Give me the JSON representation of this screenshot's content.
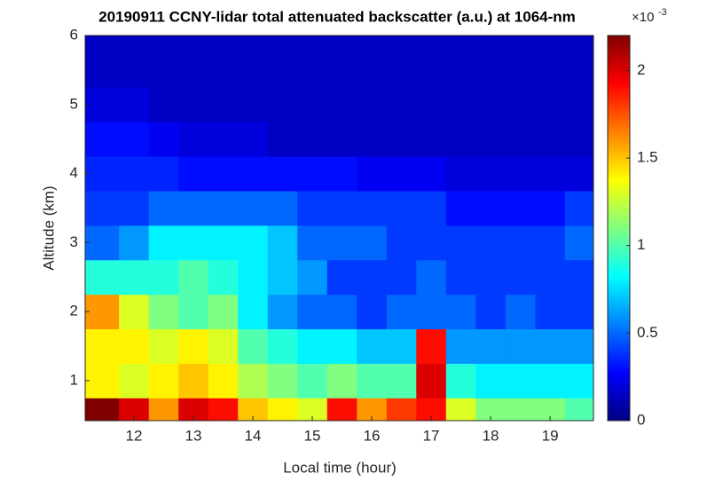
{
  "chart_data": {
    "type": "heatmap",
    "title": "20190911 CCNY-lidar total attenuated backscatter (a.u.) at 1064-nm",
    "x_label": "Local time (hour)",
    "y_label": "Altitude (km)",
    "colorbar_base": "×10",
    "colorbar_exponent": "-3",
    "colormap": "jet",
    "x": [
      11.5,
      12,
      12.5,
      13,
      13.5,
      14,
      14.5,
      15,
      15.5,
      16,
      16.5,
      17,
      17.5,
      18,
      18.5,
      19,
      19.5
    ],
    "y": [
      0.5,
      1,
      1.5,
      2,
      2.5,
      3,
      3.5,
      4,
      4.5,
      5,
      5.5
    ],
    "z": [
      [
        2.2,
        2.0,
        1.6,
        2.0,
        1.9,
        1.5,
        1.4,
        1.3,
        1.9,
        1.6,
        1.8,
        1.9,
        1.3,
        1.1,
        1.1,
        1.1,
        1.0
      ],
      [
        1.4,
        1.3,
        1.4,
        1.5,
        1.4,
        1.2,
        1.1,
        1.0,
        1.1,
        1.0,
        1.0,
        2.0,
        0.9,
        0.8,
        0.8,
        0.8,
        0.8
      ],
      [
        1.4,
        1.4,
        1.3,
        1.4,
        1.3,
        1.0,
        0.9,
        0.8,
        0.8,
        0.7,
        0.7,
        1.9,
        0.6,
        0.6,
        0.6,
        0.6,
        0.6
      ],
      [
        1.6,
        1.3,
        1.1,
        1.0,
        1.1,
        0.8,
        0.6,
        0.5,
        0.5,
        0.4,
        0.5,
        0.5,
        0.5,
        0.4,
        0.5,
        0.4,
        0.4
      ],
      [
        0.9,
        0.9,
        0.9,
        1.0,
        0.9,
        0.8,
        0.7,
        0.6,
        0.4,
        0.4,
        0.4,
        0.5,
        0.4,
        0.4,
        0.4,
        0.4,
        0.4
      ],
      [
        0.5,
        0.6,
        0.8,
        0.8,
        0.8,
        0.8,
        0.7,
        0.5,
        0.5,
        0.5,
        0.4,
        0.4,
        0.4,
        0.4,
        0.4,
        0.4,
        0.5
      ],
      [
        0.4,
        0.4,
        0.5,
        0.5,
        0.5,
        0.5,
        0.5,
        0.4,
        0.4,
        0.4,
        0.4,
        0.4,
        0.3,
        0.3,
        0.3,
        0.3,
        0.4
      ],
      [
        0.35,
        0.35,
        0.35,
        0.3,
        0.3,
        0.3,
        0.3,
        0.3,
        0.3,
        0.25,
        0.25,
        0.25,
        0.2,
        0.2,
        0.2,
        0.2,
        0.2
      ],
      [
        0.3,
        0.3,
        0.25,
        0.2,
        0.2,
        0.2,
        0.15,
        0.15,
        0.15,
        0.15,
        0.15,
        0.15,
        0.15,
        0.15,
        0.15,
        0.15,
        0.15
      ],
      [
        0.2,
        0.2,
        0.15,
        0.15,
        0.15,
        0.15,
        0.15,
        0.15,
        0.15,
        0.15,
        0.15,
        0.15,
        0.15,
        0.15,
        0.15,
        0.15,
        0.15
      ],
      [
        0.15,
        0.15,
        0.15,
        0.15,
        0.15,
        0.15,
        0.15,
        0.15,
        0.15,
        0.15,
        0.15,
        0.15,
        0.15,
        0.15,
        0.15,
        0.15,
        0.15
      ]
    ],
    "xlim": [
      11.18,
      19.73
    ],
    "ylim": [
      0.42,
      6
    ],
    "clim": [
      0,
      2.2
    ],
    "xticks": [
      12,
      13,
      14,
      15,
      16,
      17,
      18,
      19
    ],
    "yticks": [
      1,
      2,
      3,
      4,
      5,
      6
    ],
    "cticks": [
      0,
      0.5,
      1,
      1.5,
      2
    ]
  }
}
